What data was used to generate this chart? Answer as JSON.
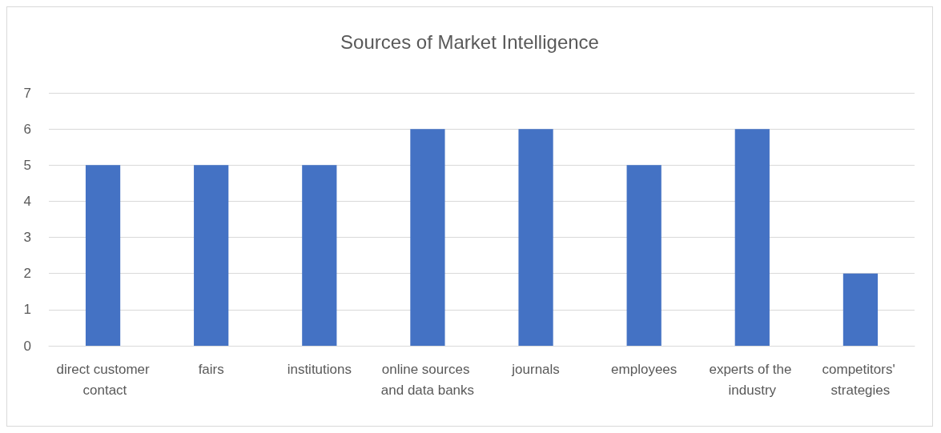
{
  "chart_data": {
    "type": "bar",
    "title": "Sources of Market Intelligence",
    "categories": [
      "direct customer contact",
      "fairs",
      "institutions",
      "online sources and data banks",
      "journals",
      "employees",
      "experts of the industry",
      "competitors' strategies"
    ],
    "values": [
      5,
      5,
      5,
      6,
      6,
      5,
      6,
      2
    ],
    "color": "#4472c4",
    "ylim": [
      0,
      7
    ],
    "yticks": [
      0,
      1,
      2,
      3,
      4,
      5,
      6,
      7
    ],
    "grid": "y"
  }
}
